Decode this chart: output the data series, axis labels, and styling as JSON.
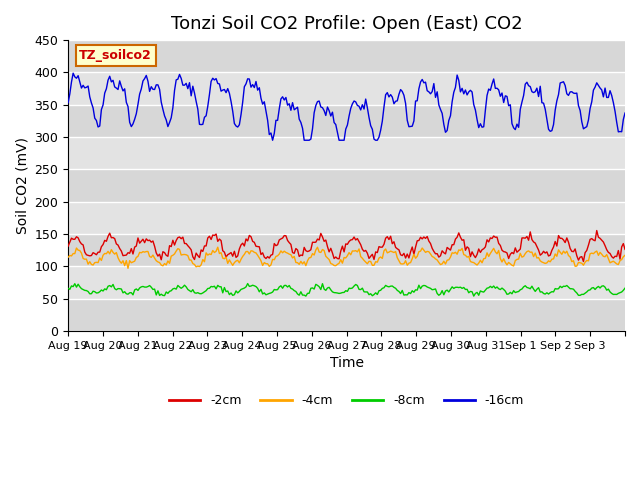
{
  "title": "Tonzi Soil CO2 Profile: Open (East) CO2",
  "ylabel": "Soil CO2 (mV)",
  "xlabel": "Time",
  "ylim": [
    0,
    450
  ],
  "xtick_labels": [
    "Aug 19",
    "Aug 20",
    "Aug 21",
    "Aug 22",
    "Aug 23",
    "Aug 24",
    "Aug 25",
    "Aug 26",
    "Aug 27",
    "Aug 28",
    "Aug 29",
    "Aug 30",
    "Aug 31",
    "Sep 1",
    "Sep 2",
    "Sep 3",
    ""
  ],
  "legend_labels": [
    "-2cm",
    "-4cm",
    "-8cm",
    "-16cm"
  ],
  "legend_colors": [
    "#dd0000",
    "#ffa500",
    "#00cc00",
    "#0000dd"
  ],
  "line_colors": [
    "#dd0000",
    "#ffa500",
    "#00cc00",
    "#0000dd"
  ],
  "annotation_text": "TZ_soilco2",
  "annotation_bg": "#ffffcc",
  "annotation_fg": "#cc0000",
  "n_points": 336,
  "background_color": "#ffffff",
  "panel_color": "#e8e8e8",
  "grid_color": "#ffffff",
  "title_fontsize": 13,
  "yticks": [
    0,
    50,
    100,
    150,
    200,
    250,
    300,
    350,
    400,
    450
  ]
}
